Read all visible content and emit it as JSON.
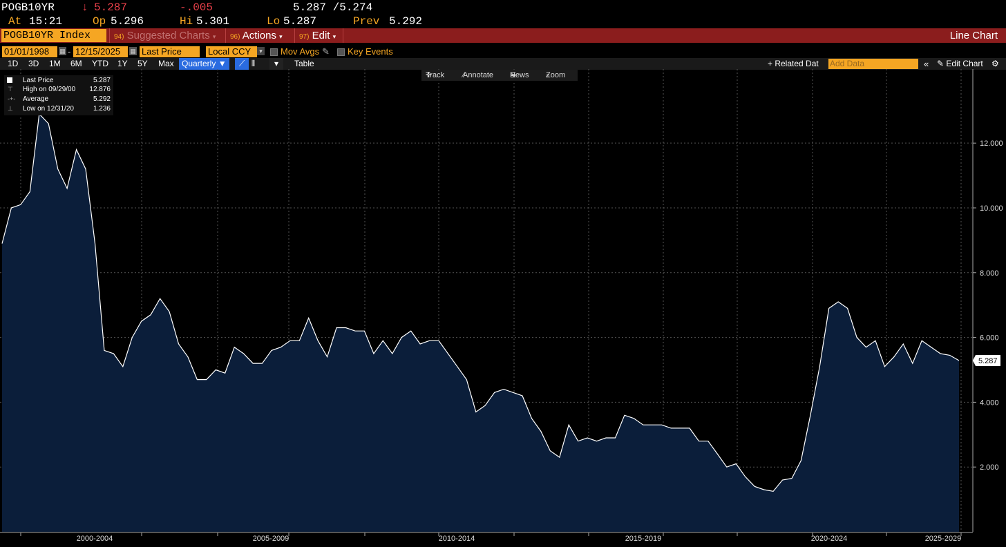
{
  "quote": {
    "ticker": "POGB10YR",
    "arrow": "↓",
    "last": "5.287",
    "change": "-.005",
    "bid_ask": "5.287 /5.274",
    "at_label": "At",
    "at_time": "15:21",
    "op_label": "Op",
    "op": "5.296",
    "hi_label": "Hi",
    "hi": "5.301",
    "lo_label": "Lo",
    "lo": "5.287",
    "prev_label": "Prev",
    "prev": "5.292"
  },
  "menubar": {
    "security": "POGB10YR Index",
    "items": [
      {
        "num": "94)",
        "label": "Suggested Charts"
      },
      {
        "num": "96)",
        "label": "Actions"
      },
      {
        "num": "97)",
        "label": "Edit"
      }
    ],
    "chart_type": "Line Chart"
  },
  "options": {
    "start_date": "01/01/1998",
    "end_date": "12/15/2025",
    "field": "Last Price",
    "currency": "Local CCY",
    "mov_avgs": "Mov Avgs",
    "key_events": "Key Events"
  },
  "rangebar": {
    "ranges": [
      "1D",
      "3D",
      "1M",
      "6M",
      "YTD",
      "1Y",
      "5Y",
      "Max"
    ],
    "frequency": "Quarterly",
    "table": "Table",
    "related": "+ Related Dat",
    "add_data_placeholder": "Add Data",
    "edit_chart": "Edit Chart"
  },
  "tools": [
    "Track",
    "Annotate",
    "News",
    "Zoom"
  ],
  "legend": {
    "last_label": "Last Price",
    "last_value": "5.287",
    "high_label": "High on 09/29/00",
    "high_value": "12.876",
    "avg_label": "Average",
    "avg_value": "5.292",
    "low_label": "Low on 12/31/20",
    "low_value": "1.236"
  },
  "colors": {
    "accent": "#f5a623",
    "menubar": "#8b1d1d",
    "area_fill": "#0b1e3a",
    "down": "#e8404a"
  },
  "chart_data": {
    "type": "area",
    "y_ticks": [
      "2.000",
      "4.000",
      "6.000",
      "8.000",
      "10.000",
      "12.000"
    ],
    "x_labels": [
      "2000-2004",
      "2005-2009",
      "2010-2014",
      "2015-2019",
      "2020-2024",
      "2025-2029"
    ],
    "ylim": [
      0,
      14.2
    ],
    "last_value_tag": "5.287",
    "grid": true,
    "series": [
      {
        "values": [
          8.9,
          10.0,
          10.1,
          10.5,
          12.9,
          12.6,
          11.2,
          10.6,
          11.8,
          11.2,
          8.9,
          5.6,
          5.5,
          5.1,
          6.0,
          6.5,
          6.7,
          7.2,
          6.8,
          5.8,
          5.4,
          4.7,
          4.7,
          5.0,
          4.9,
          5.7,
          5.5,
          5.2,
          5.2,
          5.6,
          5.7,
          5.9,
          5.9,
          6.6,
          5.9,
          5.4,
          6.3,
          6.3,
          6.2,
          6.2,
          5.5,
          5.9,
          5.5,
          6.0,
          6.2,
          5.8,
          5.9,
          5.9,
          5.5,
          5.1,
          4.7,
          3.7,
          3.9,
          4.3,
          4.4,
          4.3,
          4.2,
          3.5,
          3.1,
          2.5,
          2.3,
          3.3,
          2.8,
          2.9,
          2.8,
          2.9,
          2.9,
          3.6,
          3.5,
          3.3,
          3.3,
          3.3,
          3.2,
          3.2,
          3.2,
          2.8,
          2.8,
          2.4,
          2.0,
          2.1,
          1.7,
          1.4,
          1.3,
          1.25,
          1.6,
          1.65,
          2.2,
          3.6,
          5.1,
          6.9,
          7.1,
          6.9,
          6.0,
          5.7,
          5.9,
          5.1,
          5.4,
          5.8,
          5.2,
          5.9,
          5.7,
          5.5,
          5.45,
          5.287
        ]
      }
    ]
  }
}
